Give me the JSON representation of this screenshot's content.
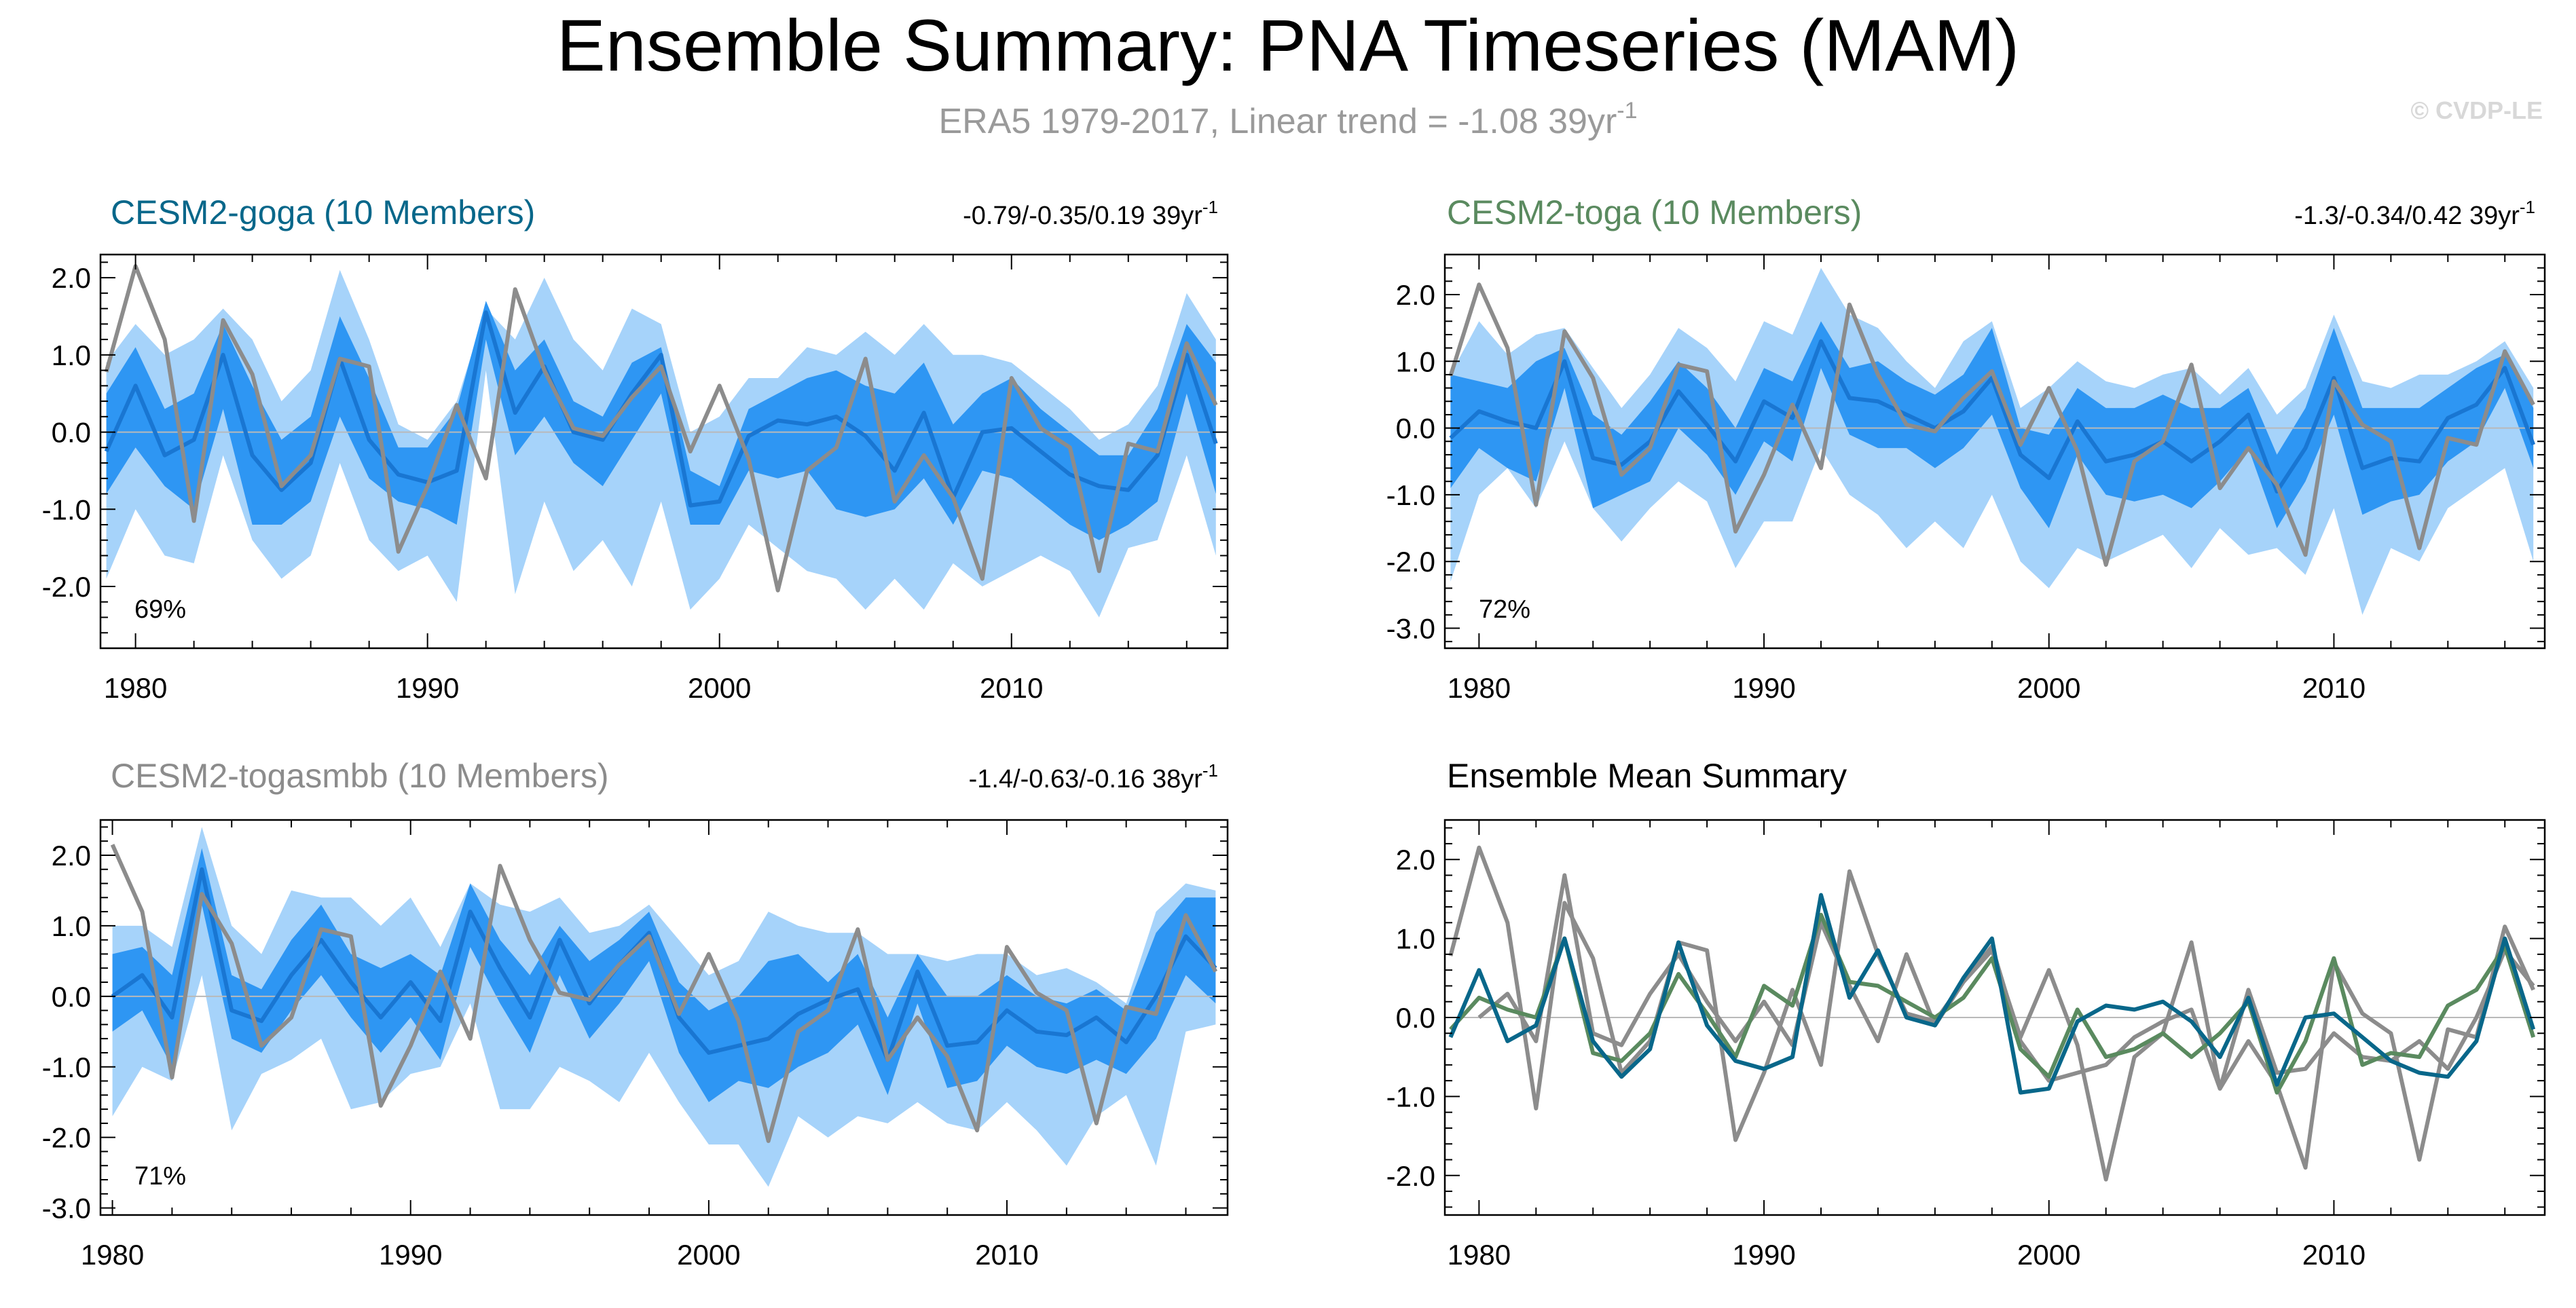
{
  "figure": {
    "title": "Ensemble Summary: PNA Timeseries (MAM)",
    "subtitle": "ERA5 1979-2017, Linear trend = -1.08 39yr",
    "subtitle_sup": "-1",
    "watermark": "© CVDP-LE"
  },
  "colors": {
    "outer_band": "#a6d3fa",
    "inner_band": "#2e96f3",
    "mean_line": "#1976d2",
    "obs_line": "#8c8c8c",
    "goga": "#08678a",
    "toga": "#5a8a5f",
    "togasmbb": "#8c8c8c",
    "text": "#000000",
    "subtitle": "#9a9a9a"
  },
  "chart_data": [
    {
      "id": "goga",
      "type": "area",
      "title": "CESM2-goga (10 Members)",
      "trend": "-0.79/-0.35/0.19 39yr",
      "trend_sup": "-1",
      "percent": "69%",
      "ylim": [
        -2.8,
        2.3
      ],
      "yticks": [
        2.0,
        1.0,
        0.0,
        -1.0,
        -2.0
      ],
      "ytick_labels": [
        "2.0",
        "1.0",
        "0.0",
        "-1.0",
        "-2.0"
      ],
      "xlim": [
        1978.8,
        2017.4
      ],
      "xticks": [
        1980,
        1990,
        2000,
        2010
      ],
      "xtick_labels": [
        "1980",
        "1990",
        "2000",
        "2010"
      ],
      "x": [
        1979,
        1980,
        1981,
        1982,
        1983,
        1984,
        1985,
        1986,
        1987,
        1988,
        1989,
        1990,
        1991,
        1992,
        1993,
        1994,
        1995,
        1996,
        1997,
        1998,
        1999,
        2000,
        2001,
        2002,
        2003,
        2004,
        2005,
        2006,
        2007,
        2008,
        2009,
        2010,
        2011,
        2012,
        2013,
        2014,
        2015,
        2016,
        2017
      ],
      "mean": [
        -0.25,
        0.6,
        -0.3,
        -0.1,
        1.0,
        -0.3,
        -0.75,
        -0.4,
        0.95,
        -0.1,
        -0.55,
        -0.65,
        -0.5,
        1.55,
        0.25,
        0.85,
        0.0,
        -0.1,
        0.5,
        1.0,
        -0.95,
        -0.9,
        -0.05,
        0.15,
        0.1,
        0.2,
        -0.05,
        -0.5,
        0.25,
        -0.85,
        0.0,
        0.05,
        -0.25,
        -0.55,
        -0.7,
        -0.75,
        -0.3,
        1.0,
        -0.15
      ],
      "inner_upper": [
        0.5,
        1.1,
        0.3,
        0.5,
        1.4,
        0.6,
        -0.1,
        0.2,
        1.5,
        0.7,
        -0.2,
        -0.2,
        0.3,
        1.7,
        0.8,
        1.2,
        0.4,
        0.2,
        0.9,
        1.1,
        -0.5,
        -0.7,
        0.3,
        0.5,
        0.7,
        0.8,
        0.6,
        0.5,
        0.9,
        0.1,
        0.5,
        0.7,
        0.3,
        0.0,
        -0.3,
        -0.3,
        0.3,
        1.4,
        0.9
      ],
      "inner_lower": [
        -0.8,
        -0.2,
        -0.7,
        -1.0,
        0.3,
        -1.2,
        -1.2,
        -0.9,
        0.2,
        -0.6,
        -0.9,
        -1.0,
        -1.2,
        1.2,
        -0.3,
        0.2,
        -0.4,
        -0.7,
        -0.1,
        0.5,
        -1.2,
        -1.2,
        -0.5,
        -0.6,
        -0.5,
        -1.0,
        -1.1,
        -1.0,
        -0.6,
        -1.2,
        -0.5,
        -0.6,
        -0.9,
        -1.2,
        -1.4,
        -1.2,
        -0.9,
        0.5,
        -0.8
      ],
      "outer_upper": [
        0.9,
        1.4,
        1.0,
        1.2,
        1.6,
        1.2,
        0.4,
        0.8,
        2.1,
        1.2,
        0.1,
        -0.1,
        0.4,
        1.6,
        1.2,
        2.0,
        1.2,
        0.8,
        1.6,
        1.4,
        0.0,
        0.2,
        0.7,
        0.7,
        1.1,
        1.0,
        1.3,
        1.0,
        1.4,
        1.0,
        1.0,
        0.9,
        0.6,
        0.3,
        -0.1,
        0.1,
        0.6,
        1.8,
        1.2
      ],
      "outer_lower": [
        -1.9,
        -1.0,
        -1.6,
        -1.7,
        -0.3,
        -1.4,
        -1.9,
        -1.6,
        -0.4,
        -1.4,
        -1.8,
        -1.6,
        -2.2,
        0.8,
        -2.1,
        -0.9,
        -1.8,
        -1.4,
        -2.0,
        -0.9,
        -2.3,
        -1.9,
        -1.2,
        -1.5,
        -1.8,
        -1.9,
        -2.3,
        -1.9,
        -2.3,
        -1.7,
        -2.0,
        -1.8,
        -1.6,
        -1.8,
        -2.4,
        -1.5,
        -1.4,
        -0.3,
        -1.6
      ],
      "obs": [
        0.78,
        2.15,
        1.2,
        -1.15,
        1.45,
        0.75,
        -0.7,
        -0.3,
        0.95,
        0.85,
        -1.55,
        -0.7,
        0.35,
        -0.6,
        1.85,
        0.8,
        0.05,
        -0.05,
        0.45,
        0.85,
        -0.25,
        0.6,
        -0.35,
        -2.05,
        -0.5,
        -0.2,
        0.95,
        -0.9,
        -0.3,
        -0.85,
        -1.9,
        0.7,
        0.05,
        -0.2,
        -1.8,
        -0.15,
        -0.25,
        1.15,
        0.35
      ]
    },
    {
      "id": "toga",
      "type": "area",
      "title": "CESM2-toga (10 Members)",
      "trend": "-1.3/-0.34/0.42 39yr",
      "trend_sup": "-1",
      "percent": "72%",
      "ylim": [
        -3.3,
        2.6
      ],
      "yticks": [
        2.0,
        1.0,
        0.0,
        -1.0,
        -2.0,
        -3.0
      ],
      "ytick_labels": [
        "2.0",
        "1.0",
        "0.0",
        "-1.0",
        "-2.0",
        "-3.0"
      ],
      "xlim": [
        1978.8,
        2017.4
      ],
      "xticks": [
        1980,
        1990,
        2000,
        2010
      ],
      "xtick_labels": [
        "1980",
        "1990",
        "2000",
        "2010"
      ],
      "x": [
        1979,
        1980,
        1981,
        1982,
        1983,
        1984,
        1985,
        1986,
        1987,
        1988,
        1989,
        1990,
        1991,
        1992,
        1993,
        1994,
        1995,
        1996,
        1997,
        1998,
        1999,
        2000,
        2001,
        2002,
        2003,
        2004,
        2005,
        2006,
        2007,
        2008,
        2009,
        2010,
        2011,
        2012,
        2013,
        2014,
        2015,
        2016,
        2017
      ],
      "mean": [
        -0.15,
        0.25,
        0.1,
        0.0,
        1.0,
        -0.45,
        -0.55,
        -0.2,
        0.55,
        0.05,
        -0.5,
        0.4,
        0.15,
        1.3,
        0.45,
        0.4,
        0.2,
        0.0,
        0.25,
        0.75,
        -0.4,
        -0.75,
        0.1,
        -0.5,
        -0.4,
        -0.2,
        -0.5,
        -0.2,
        0.2,
        -0.95,
        -0.3,
        0.75,
        -0.6,
        -0.45,
        -0.5,
        0.15,
        0.35,
        0.9,
        -0.25
      ],
      "inner_upper": [
        0.8,
        0.7,
        0.6,
        1.0,
        1.2,
        0.2,
        -0.1,
        0.4,
        1.0,
        0.6,
        0.0,
        0.9,
        0.7,
        1.6,
        0.9,
        1.0,
        0.7,
        0.5,
        0.8,
        1.5,
        0.0,
        -0.1,
        0.6,
        0.3,
        0.3,
        0.5,
        0.3,
        0.3,
        0.6,
        -0.4,
        0.3,
        1.5,
        0.3,
        0.3,
        0.3,
        0.6,
        0.9,
        1.1,
        0.3
      ],
      "inner_lower": [
        -0.9,
        -0.3,
        -0.6,
        -0.8,
        0.6,
        -1.2,
        -1.0,
        -0.8,
        0.0,
        -0.4,
        -1.0,
        -0.2,
        -0.5,
        0.9,
        -0.1,
        -0.3,
        -0.3,
        -0.6,
        -0.3,
        0.2,
        -0.9,
        -1.5,
        -0.4,
        -1.0,
        -1.1,
        -1.0,
        -1.2,
        -0.8,
        -0.3,
        -1.5,
        -0.8,
        0.2,
        -1.3,
        -1.1,
        -1.0,
        -0.5,
        -0.2,
        0.6,
        -0.6
      ],
      "outer_upper": [
        0.8,
        1.6,
        1.1,
        1.4,
        1.5,
        0.9,
        0.3,
        0.8,
        1.5,
        1.2,
        0.7,
        1.6,
        1.4,
        2.4,
        1.7,
        1.5,
        1.0,
        0.6,
        1.3,
        1.6,
        0.3,
        0.6,
        1.0,
        0.7,
        0.6,
        0.8,
        0.9,
        0.5,
        0.9,
        0.2,
        0.6,
        1.7,
        0.7,
        0.6,
        0.8,
        0.8,
        1.0,
        1.3,
        0.6
      ],
      "outer_lower": [
        -2.3,
        -1.0,
        -0.6,
        -1.2,
        -0.2,
        -1.2,
        -1.7,
        -1.2,
        -0.8,
        -1.1,
        -2.1,
        -1.4,
        -1.4,
        -0.3,
        -1.0,
        -1.3,
        -1.8,
        -1.4,
        -1.8,
        -1.0,
        -2.0,
        -2.4,
        -1.8,
        -2.0,
        -1.8,
        -1.6,
        -2.1,
        -1.5,
        -1.9,
        -1.8,
        -2.2,
        -1.2,
        -2.8,
        -1.8,
        -2.0,
        -1.2,
        -0.9,
        -0.6,
        -2.0
      ],
      "obs": [
        0.78,
        2.15,
        1.2,
        -1.15,
        1.45,
        0.75,
        -0.7,
        -0.3,
        0.95,
        0.85,
        -1.55,
        -0.7,
        0.35,
        -0.6,
        1.85,
        0.8,
        0.05,
        -0.05,
        0.45,
        0.85,
        -0.25,
        0.6,
        -0.35,
        -2.05,
        -0.5,
        -0.2,
        0.95,
        -0.9,
        -0.3,
        -0.85,
        -1.9,
        0.7,
        0.05,
        -0.2,
        -1.8,
        -0.15,
        -0.25,
        1.15,
        0.35
      ]
    },
    {
      "id": "togasmbb",
      "type": "area",
      "title": "CESM2-togasmbb (10 Members)",
      "trend": "-1.4/-0.63/-0.16 38yr",
      "trend_sup": "-1",
      "percent": "71%",
      "ylim": [
        -3.1,
        2.5
      ],
      "yticks": [
        2.0,
        1.0,
        0.0,
        -1.0,
        -2.0,
        -3.0
      ],
      "ytick_labels": [
        "2.0",
        "1.0",
        "0.0",
        "-1.0",
        "-2.0",
        "-3.0"
      ],
      "xlim": [
        1979.6,
        2017.4
      ],
      "xticks": [
        1980,
        1990,
        2000,
        2010
      ],
      "xtick_labels": [
        "1980",
        "1990",
        "2000",
        "2010"
      ],
      "x": [
        1980,
        1981,
        1982,
        1983,
        1984,
        1985,
        1986,
        1987,
        1988,
        1989,
        1990,
        1991,
        1992,
        1993,
        1994,
        1995,
        1996,
        1997,
        1998,
        1999,
        2000,
        2001,
        2002,
        2003,
        2004,
        2005,
        2006,
        2007,
        2008,
        2009,
        2010,
        2011,
        2012,
        2013,
        2014,
        2015,
        2016,
        2017
      ],
      "mean": [
        0.0,
        0.3,
        -0.3,
        1.8,
        -0.2,
        -0.35,
        0.3,
        0.8,
        0.2,
        -0.3,
        0.2,
        -0.35,
        1.2,
        0.4,
        -0.3,
        0.8,
        -0.1,
        0.45,
        0.9,
        -0.3,
        -0.8,
        -0.7,
        -0.6,
        -0.25,
        -0.05,
        0.1,
        -0.9,
        0.35,
        -0.7,
        -0.65,
        -0.2,
        -0.5,
        -0.55,
        -0.3,
        -0.65,
        0.0,
        0.85,
        0.4
      ],
      "inner_upper": [
        0.6,
        0.7,
        0.3,
        2.1,
        0.3,
        0.1,
        0.8,
        1.3,
        0.6,
        0.4,
        0.6,
        0.3,
        1.6,
        0.8,
        0.3,
        1.0,
        0.5,
        0.8,
        1.2,
        0.2,
        -0.2,
        0.0,
        0.5,
        0.6,
        0.2,
        0.6,
        -0.3,
        0.6,
        0.0,
        0.0,
        0.3,
        0.0,
        -0.1,
        0.1,
        -0.2,
        0.9,
        1.4,
        1.4
      ],
      "inner_lower": [
        -0.5,
        -0.2,
        -1.0,
        1.3,
        -0.6,
        -0.8,
        -0.2,
        0.3,
        -0.3,
        -0.8,
        -0.3,
        -0.9,
        0.7,
        -0.1,
        -0.8,
        0.3,
        -0.6,
        -0.1,
        0.5,
        -0.8,
        -1.5,
        -1.2,
        -1.3,
        -1.0,
        -0.8,
        -0.4,
        -1.4,
        -0.1,
        -1.3,
        -1.2,
        -0.7,
        -1.0,
        -1.1,
        -0.9,
        -1.1,
        -0.6,
        0.3,
        -0.1
      ],
      "outer_upper": [
        1.0,
        1.0,
        0.7,
        2.4,
        1.0,
        0.6,
        1.5,
        1.4,
        1.4,
        1.0,
        1.4,
        0.7,
        1.6,
        1.3,
        1.2,
        1.4,
        0.9,
        1.0,
        1.3,
        0.8,
        0.3,
        0.5,
        1.2,
        1.0,
        0.9,
        0.9,
        0.6,
        0.6,
        0.5,
        0.6,
        0.6,
        0.3,
        0.4,
        0.2,
        -0.1,
        1.2,
        1.6,
        1.5
      ],
      "outer_lower": [
        -1.7,
        -1.0,
        -1.2,
        0.3,
        -1.9,
        -1.1,
        -0.9,
        -0.6,
        -1.6,
        -1.5,
        -1.1,
        -1.0,
        -0.1,
        -1.6,
        -1.6,
        -1.0,
        -1.2,
        -1.5,
        -0.8,
        -1.5,
        -2.1,
        -2.1,
        -2.7,
        -1.7,
        -2.0,
        -1.7,
        -1.8,
        -1.5,
        -1.8,
        -1.9,
        -1.5,
        -1.9,
        -2.4,
        -1.7,
        -1.4,
        -2.4,
        -0.5,
        -0.4
      ],
      "obs": [
        2.15,
        1.2,
        -1.15,
        1.45,
        0.75,
        -0.7,
        -0.3,
        0.95,
        0.85,
        -1.55,
        -0.7,
        0.35,
        -0.6,
        1.85,
        0.8,
        0.05,
        -0.05,
        0.45,
        0.85,
        -0.25,
        0.6,
        -0.35,
        -2.05,
        -0.5,
        -0.2,
        0.95,
        -0.9,
        -0.3,
        -0.85,
        -1.9,
        0.7,
        0.05,
        -0.2,
        -1.8,
        -0.15,
        -0.25,
        1.15,
        0.35
      ]
    },
    {
      "id": "summary",
      "type": "line",
      "title": "Ensemble Mean Summary",
      "ylim": [
        -2.5,
        2.5
      ],
      "yticks": [
        2.0,
        1.0,
        0.0,
        -1.0,
        -2.0
      ],
      "ytick_labels": [
        "2.0",
        "1.0",
        "0.0",
        "-1.0",
        "-2.0"
      ],
      "xlim": [
        1978.8,
        2017.4
      ],
      "xticks": [
        1980,
        1990,
        2000,
        2010
      ],
      "xtick_labels": [
        "1980",
        "1990",
        "2000",
        "2010"
      ],
      "series": [
        {
          "name": "ERA5",
          "color_key": "obs_line",
          "x_start": 1979,
          "values": [
            0.78,
            2.15,
            1.2,
            -1.15,
            1.45,
            0.75,
            -0.7,
            -0.3,
            0.95,
            0.85,
            -1.55,
            -0.7,
            0.35,
            -0.6,
            1.85,
            0.8,
            0.05,
            -0.05,
            0.45,
            0.85,
            -0.25,
            0.6,
            -0.35,
            -2.05,
            -0.5,
            -0.2,
            0.95,
            -0.9,
            -0.3,
            -0.85,
            -1.9,
            0.7,
            0.05,
            -0.2,
            -1.8,
            -0.15,
            -0.25,
            1.15,
            0.35
          ]
        },
        {
          "name": "CESM2-togasmbb",
          "color_key": "togasmbb",
          "x_start": 1980,
          "values": [
            0.0,
            0.3,
            -0.3,
            1.8,
            -0.2,
            -0.35,
            0.3,
            0.8,
            0.2,
            -0.3,
            0.2,
            -0.35,
            1.2,
            0.4,
            -0.3,
            0.8,
            -0.1,
            0.45,
            0.9,
            -0.3,
            -0.8,
            -0.7,
            -0.6,
            -0.25,
            -0.05,
            0.1,
            -0.9,
            0.35,
            -0.7,
            -0.65,
            -0.2,
            -0.5,
            -0.55,
            -0.3,
            -0.65,
            0.0,
            0.85,
            0.4
          ]
        },
        {
          "name": "CESM2-toga",
          "color_key": "toga",
          "x_start": 1979,
          "values": [
            -0.15,
            0.25,
            0.1,
            0.0,
            1.0,
            -0.45,
            -0.55,
            -0.2,
            0.55,
            0.05,
            -0.5,
            0.4,
            0.15,
            1.3,
            0.45,
            0.4,
            0.2,
            0.0,
            0.25,
            0.75,
            -0.4,
            -0.75,
            0.1,
            -0.5,
            -0.4,
            -0.2,
            -0.5,
            -0.2,
            0.2,
            -0.95,
            -0.3,
            0.75,
            -0.6,
            -0.45,
            -0.5,
            0.15,
            0.35,
            0.9,
            -0.25
          ]
        },
        {
          "name": "CESM2-goga",
          "color_key": "goga",
          "x_start": 1979,
          "values": [
            -0.25,
            0.6,
            -0.3,
            -0.1,
            1.0,
            -0.3,
            -0.75,
            -0.4,
            0.95,
            -0.1,
            -0.55,
            -0.65,
            -0.5,
            1.55,
            0.25,
            0.85,
            0.0,
            -0.1,
            0.5,
            1.0,
            -0.95,
            -0.9,
            -0.05,
            0.15,
            0.1,
            0.2,
            -0.05,
            -0.5,
            0.25,
            -0.85,
            0.0,
            0.05,
            -0.25,
            -0.55,
            -0.7,
            -0.75,
            -0.3,
            1.0,
            -0.15
          ]
        }
      ]
    }
  ]
}
